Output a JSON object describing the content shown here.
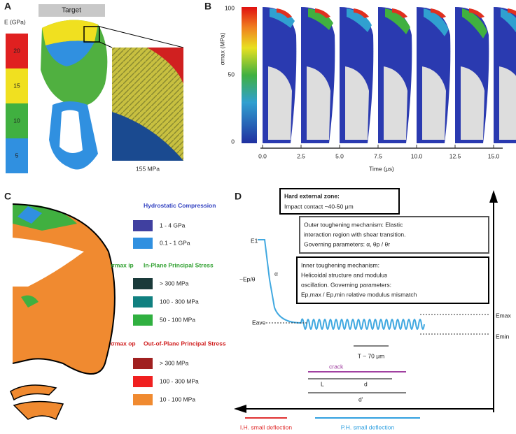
{
  "panel_a": {
    "label": "A",
    "target": "Target",
    "modulus_title": "E (GPa)",
    "legend": [
      "20",
      "15",
      "10",
      "5"
    ],
    "inset_label": "155 MPa"
  },
  "panel_b": {
    "label": "B",
    "colorbar_ticks": [
      "100",
      "50",
      "0"
    ],
    "y_label": "σmax (MPa)",
    "x_label": "Time (μs)",
    "time_ticks": [
      "0.0",
      "2.5",
      "5.0",
      "7.5",
      "10.0",
      "12.5",
      "15.0"
    ]
  },
  "panel_c": {
    "label": "C",
    "hydro_title": "Hydrostatic Compression",
    "hydro": [
      "1 - 4 GPa",
      "0.1 - 1 GPa"
    ],
    "ip_symbol": "σmax ip",
    "ip_title": "In-Plane Principal Stress",
    "ip": [
      "> 300 MPa",
      "100 - 300 MPa",
      "50 - 100 MPa"
    ],
    "op_symbol": "σmax op",
    "op_title": "Out-of-Plane Principal Stress",
    "op": [
      "> 300 MPa",
      "100 - 300 MPa",
      "10 - 100 MPa"
    ]
  },
  "panel_d": {
    "label": "D",
    "box1": [
      "Hard external zone:",
      "Impact contact ~40-50 μm"
    ],
    "box2": [
      "Outer toughening mechanism: Elastic",
      "interaction region with shear transition.",
      "Governing parameters: α, θp / θr"
    ],
    "box3": [
      "Inner toughening mechanism:",
      "Helicoidal structure and modulus",
      "oscillation. Governing parameters:",
      "Ep,max / Ep,min relative modulus mismatch"
    ],
    "e1": "E1",
    "ep_label": "~Ep/θ",
    "alpha": "α",
    "e_ave": "Eave",
    "e_max": "Emax",
    "e_min": "Emin",
    "period": "T ~ 70 μm",
    "crack": "crack",
    "l": "L",
    "d": "d",
    "d2": "d'",
    "small_left": "I.H. small deflection",
    "small_right": "P.H. small deflection"
  }
}
